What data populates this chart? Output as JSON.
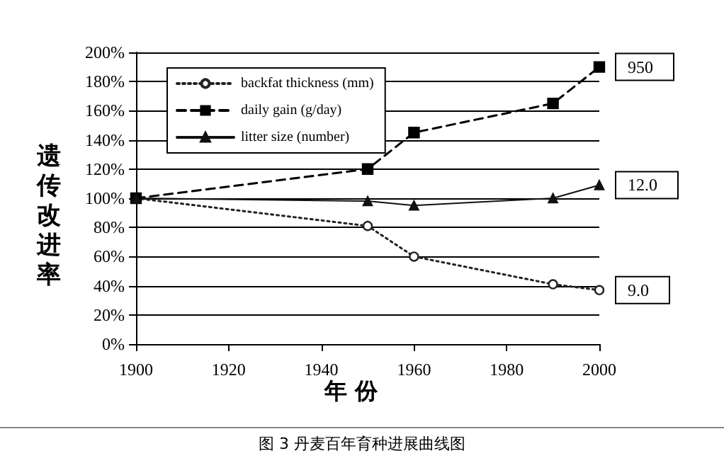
{
  "chart_data": {
    "type": "line",
    "title": "图 3 丹麦百年育种进展曲线图",
    "xlabel": "年 份",
    "ylabel": "遗传改进率",
    "x": [
      1900,
      1950,
      1960,
      1990,
      2000
    ],
    "series": [
      {
        "name": "backfat thickness (mm)",
        "color": "#222222",
        "marker": "circle",
        "line_style": "dotted",
        "values": [
          100,
          81,
          60,
          41,
          37
        ]
      },
      {
        "name": "daily gain (g/day)",
        "color": "#000000",
        "marker": "square",
        "line_style": "dashed",
        "values": [
          100,
          120,
          145,
          165,
          190
        ]
      },
      {
        "name": "litter size (number)",
        "color": "#111111",
        "marker": "triangle",
        "line_style": "solid",
        "values": [
          100,
          98,
          95,
          100,
          109
        ]
      }
    ],
    "xlim": [
      1900,
      2000
    ],
    "xticks": [
      1900,
      1920,
      1940,
      1960,
      1980,
      2000
    ],
    "ylim": [
      0,
      200
    ],
    "yticks": [
      {
        "value": 0,
        "label": "0%"
      },
      {
        "value": 20,
        "label": "20%"
      },
      {
        "value": 40,
        "label": "40%"
      },
      {
        "value": 60,
        "label": "60%"
      },
      {
        "value": 80,
        "label": "80%"
      },
      {
        "value": 100,
        "label": "100%"
      },
      {
        "value": 120,
        "label": "120%"
      },
      {
        "value": 140,
        "label": "140%"
      },
      {
        "value": 160,
        "label": "160%"
      },
      {
        "value": 180,
        "label": "180%"
      },
      {
        "value": 200,
        "label": "200%"
      }
    ],
    "grid": "y",
    "legend": "top left",
    "annotations": [
      "9.0",
      "950",
      "12.0"
    ]
  }
}
